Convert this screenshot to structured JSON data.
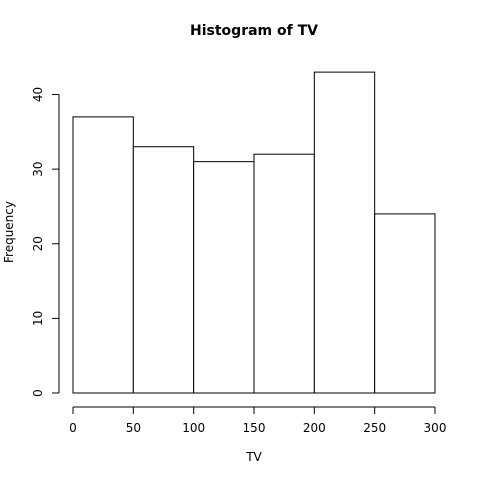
{
  "chart_data": {
    "type": "bar",
    "title": "Histogram of TV",
    "xlabel": "TV",
    "ylabel": "Frequency",
    "bins": [
      [
        0,
        50
      ],
      [
        50,
        100
      ],
      [
        100,
        150
      ],
      [
        150,
        200
      ],
      [
        200,
        250
      ],
      [
        250,
        300
      ]
    ],
    "values": [
      37,
      33,
      31,
      32,
      43,
      24
    ],
    "xlim": [
      0,
      300
    ],
    "ylim": [
      0,
      43
    ],
    "xticks": [
      0,
      50,
      100,
      150,
      200,
      250,
      300
    ],
    "yticks": [
      0,
      10,
      20,
      30,
      40
    ],
    "grid": false,
    "colors": {
      "bar_fill": "#ffffff",
      "bar_stroke": "#000000"
    }
  }
}
